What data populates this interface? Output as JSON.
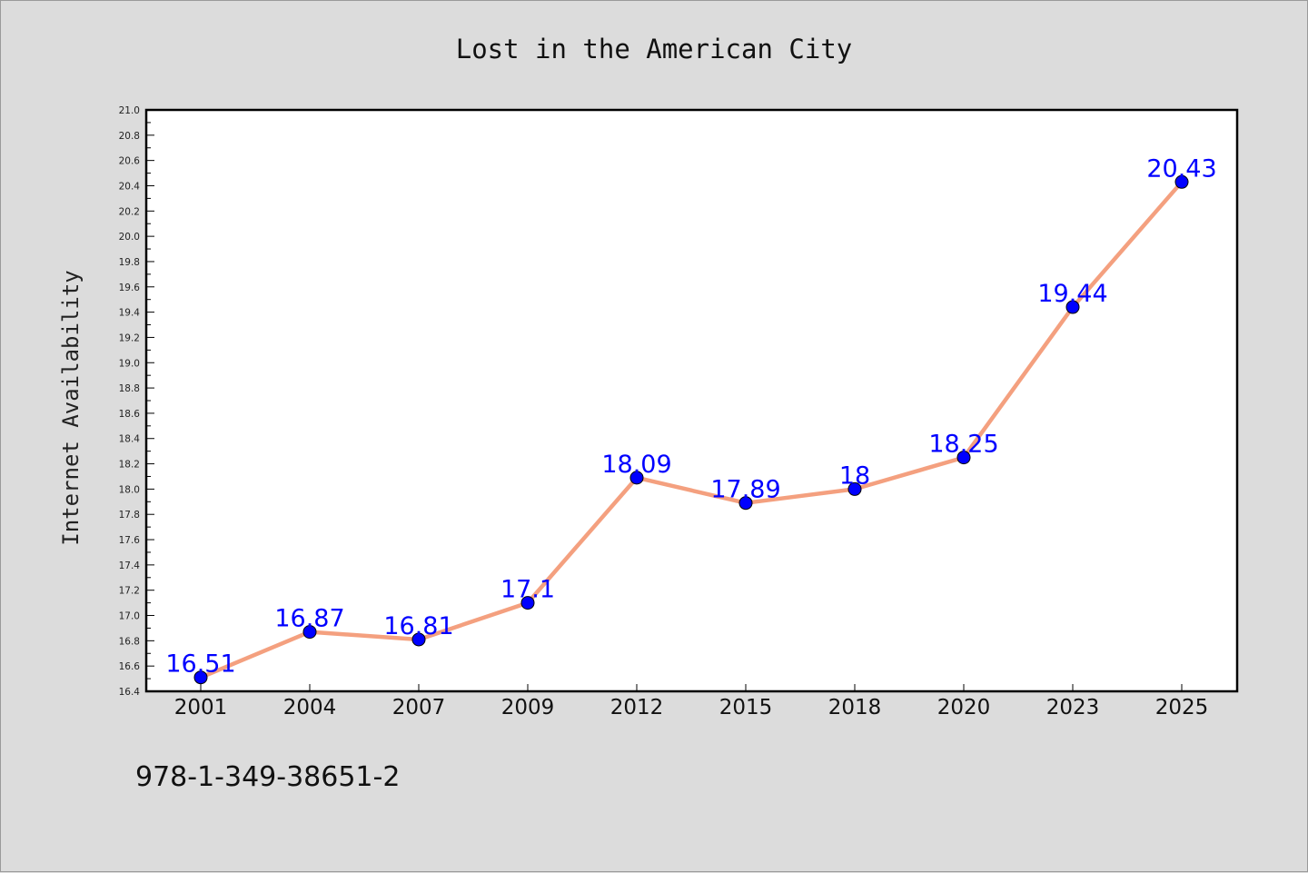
{
  "chart_data": {
    "type": "line",
    "title": "Lost in the American City",
    "xlabel": "",
    "ylabel": "Internet Availability",
    "categories": [
      "2001",
      "2004",
      "2007",
      "2009",
      "2012",
      "2015",
      "2018",
      "2020",
      "2023",
      "2025"
    ],
    "series": [
      {
        "values": [
          16.51,
          16.87,
          16.81,
          17.1,
          18.09,
          17.89,
          18,
          18.25,
          19.44,
          20.43
        ],
        "labels": [
          "16.51",
          "16.87",
          "16.81",
          "17.1",
          "18.09",
          "17.89",
          "18",
          "18.25",
          "19.44",
          "20.43"
        ]
      }
    ],
    "ylim": [
      16.4,
      21.0
    ],
    "yticks": [
      "16.4",
      "16.6",
      "16.8",
      "17.0",
      "17.2",
      "17.4",
      "17.6",
      "17.8",
      "18.0",
      "18.2",
      "18.4",
      "18.6",
      "18.8",
      "19.0",
      "19.2",
      "19.4",
      "19.6",
      "19.8",
      "20.0",
      "20.2",
      "20.4",
      "20.6",
      "20.8",
      "21.0"
    ],
    "grid": false,
    "legend": "none",
    "line_color": "#f4a07f",
    "marker_color": "#0000ff",
    "label_color": "#0000ff",
    "footer": "978-1-349-38651-2"
  }
}
